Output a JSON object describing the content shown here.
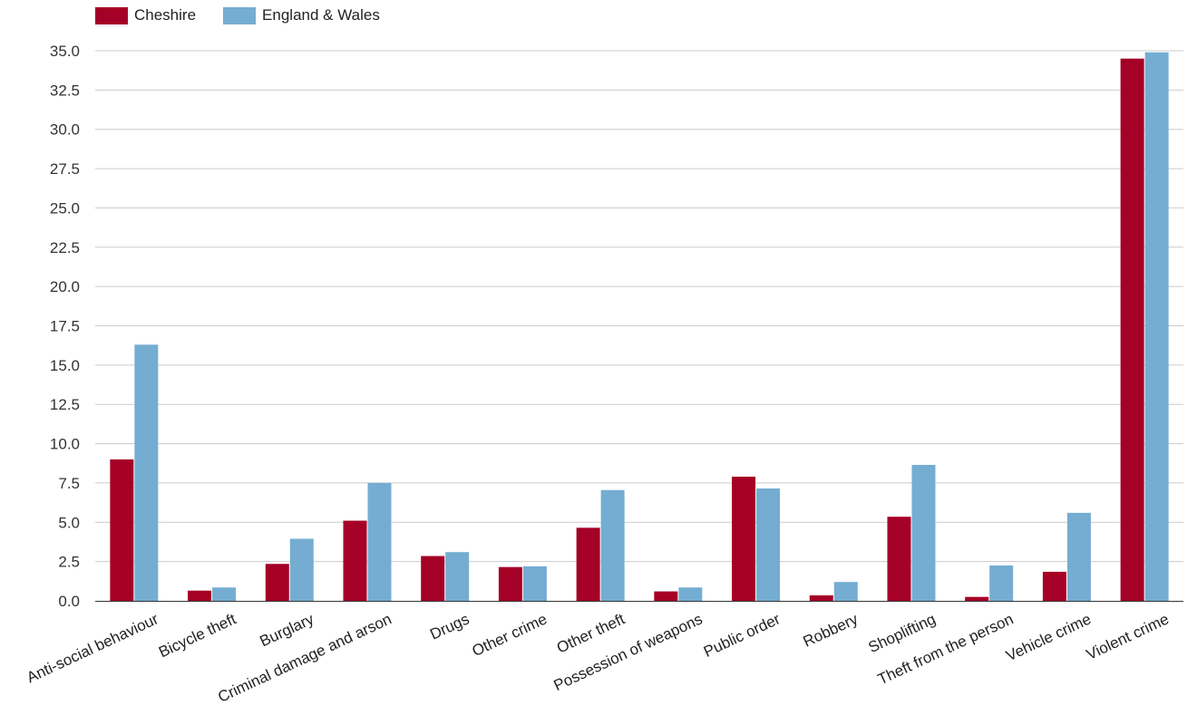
{
  "colors": {
    "Cheshire": "#a50026",
    "England & Wales": "#74add1",
    "grid": "#cccccc",
    "axis": "#333333"
  },
  "chart_data": {
    "type": "bar",
    "title": "",
    "xlabel": "",
    "ylabel": "",
    "ylim": [
      0,
      35
    ],
    "grid": true,
    "legend_position": "top-left",
    "y_ticks": [
      "0.0",
      "2.5",
      "5.0",
      "7.5",
      "10.0",
      "12.5",
      "15.0",
      "17.5",
      "20.0",
      "22.5",
      "25.0",
      "27.5",
      "30.0",
      "32.5",
      "35.0"
    ],
    "categories": [
      "Anti-social behaviour",
      "Bicycle theft",
      "Burglary",
      "Criminal damage and arson",
      "Drugs",
      "Other crime",
      "Other theft",
      "Possession of weapons",
      "Public order",
      "Robbery",
      "Shoplifting",
      "Theft from the person",
      "Vehicle crime",
      "Violent crime"
    ],
    "series": [
      {
        "name": "Cheshire",
        "values": [
          9.0,
          0.65,
          2.35,
          5.1,
          2.85,
          2.15,
          4.65,
          0.6,
          7.9,
          0.35,
          5.35,
          0.25,
          1.85,
          34.5
        ]
      },
      {
        "name": "England & Wales",
        "values": [
          16.3,
          0.85,
          3.95,
          7.5,
          3.1,
          2.2,
          7.05,
          0.85,
          7.15,
          1.2,
          8.65,
          2.25,
          5.6,
          34.9
        ]
      }
    ]
  }
}
